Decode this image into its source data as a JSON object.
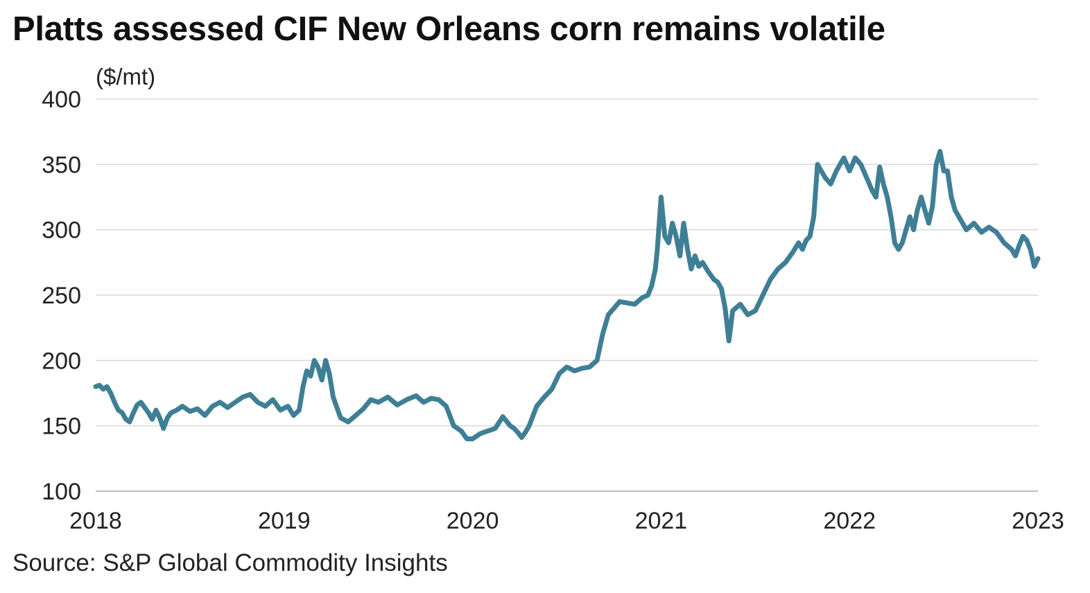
{
  "chart_data": {
    "type": "line",
    "title": "Platts assessed CIF New Orleans corn remains volatile",
    "ylabel": "($/mt)",
    "xlabel": "",
    "source": "Source: S&P Global Commodity Insights",
    "ylim": [
      100,
      400
    ],
    "xlim": [
      2018,
      2023
    ],
    "yticks": [
      100,
      150,
      200,
      250,
      300,
      350,
      400
    ],
    "xticks": [
      "2018",
      "2019",
      "2020",
      "2021",
      "2022",
      "2023"
    ],
    "grid": true,
    "line_color": "#3f7f96",
    "grid_color": "#d9d9d9",
    "series": [
      {
        "name": "CIF New Orleans corn",
        "x": [
          2018.0,
          2018.02,
          2018.04,
          2018.06,
          2018.08,
          2018.1,
          2018.12,
          2018.14,
          2018.16,
          2018.18,
          2018.2,
          2018.22,
          2018.24,
          2018.26,
          2018.28,
          2018.3,
          2018.32,
          2018.34,
          2018.36,
          2018.38,
          2018.4,
          2018.43,
          2018.46,
          2018.5,
          2018.54,
          2018.58,
          2018.62,
          2018.66,
          2018.7,
          2018.74,
          2018.78,
          2018.82,
          2018.86,
          2018.9,
          2018.94,
          2018.98,
          2019.02,
          2019.05,
          2019.08,
          2019.1,
          2019.12,
          2019.14,
          2019.16,
          2019.18,
          2019.2,
          2019.22,
          2019.24,
          2019.26,
          2019.3,
          2019.34,
          2019.38,
          2019.42,
          2019.46,
          2019.5,
          2019.55,
          2019.6,
          2019.65,
          2019.7,
          2019.74,
          2019.78,
          2019.82,
          2019.86,
          2019.9,
          2019.94,
          2019.97,
          2020.0,
          2020.04,
          2020.08,
          2020.12,
          2020.16,
          2020.2,
          2020.22,
          2020.24,
          2020.26,
          2020.28,
          2020.3,
          2020.34,
          2020.38,
          2020.42,
          2020.46,
          2020.5,
          2020.54,
          2020.58,
          2020.62,
          2020.66,
          2020.69,
          2020.72,
          2020.75,
          2020.78,
          2020.82,
          2020.86,
          2020.9,
          2020.93,
          2020.95,
          2020.97,
          2020.98,
          2021.0,
          2021.02,
          2021.04,
          2021.06,
          2021.08,
          2021.1,
          2021.12,
          2021.14,
          2021.16,
          2021.18,
          2021.2,
          2021.22,
          2021.25,
          2021.28,
          2021.3,
          2021.32,
          2021.34,
          2021.36,
          2021.38,
          2021.42,
          2021.46,
          2021.5,
          2021.54,
          2021.58,
          2021.62,
          2021.66,
          2021.7,
          2021.73,
          2021.75,
          2021.77,
          2021.79,
          2021.81,
          2021.83,
          2021.85,
          2021.87,
          2021.9,
          2021.93,
          2021.95,
          2021.97,
          2022.0,
          2022.03,
          2022.06,
          2022.09,
          2022.12,
          2022.14,
          2022.16,
          2022.18,
          2022.2,
          2022.22,
          2022.24,
          2022.26,
          2022.28,
          2022.3,
          2022.32,
          2022.34,
          2022.36,
          2022.38,
          2022.4,
          2022.42,
          2022.44,
          2022.46,
          2022.48,
          2022.5,
          2022.52,
          2022.54,
          2022.56,
          2022.58,
          2022.62,
          2022.66,
          2022.7,
          2022.74,
          2022.78,
          2022.82,
          2022.86,
          2022.88,
          2022.9,
          2022.92,
          2022.94,
          2022.96,
          2022.98,
          2023.0
        ],
        "values": [
          180,
          181,
          178,
          180,
          175,
          168,
          162,
          160,
          155,
          153,
          160,
          166,
          168,
          164,
          160,
          155,
          162,
          156,
          148,
          156,
          160,
          162,
          165,
          161,
          163,
          158,
          165,
          168,
          164,
          168,
          172,
          174,
          168,
          165,
          170,
          162,
          165,
          158,
          162,
          180,
          192,
          188,
          200,
          195,
          185,
          200,
          190,
          172,
          156,
          153,
          158,
          163,
          170,
          168,
          172,
          166,
          170,
          173,
          168,
          171,
          170,
          165,
          150,
          146,
          140,
          140,
          144,
          146,
          148,
          157,
          150,
          148,
          145,
          141,
          145,
          150,
          165,
          172,
          178,
          190,
          195,
          192,
          194,
          195,
          200,
          220,
          235,
          240,
          245,
          244,
          243,
          248,
          250,
          257,
          270,
          285,
          325,
          295,
          290,
          305,
          295,
          280,
          305,
          285,
          270,
          280,
          272,
          275,
          268,
          262,
          260,
          255,
          240,
          215,
          238,
          243,
          235,
          238,
          250,
          262,
          270,
          275,
          283,
          290,
          285,
          292,
          295,
          310,
          350,
          345,
          340,
          335,
          345,
          350,
          355,
          345,
          355,
          350,
          340,
          330,
          325,
          348,
          335,
          325,
          310,
          290,
          285,
          290,
          300,
          310,
          300,
          315,
          325,
          315,
          305,
          318,
          350,
          360,
          345,
          345,
          325,
          315,
          310,
          300,
          305,
          298,
          302,
          298,
          290,
          285,
          280,
          288,
          295,
          292,
          285,
          272,
          278
        ]
      }
    ]
  }
}
